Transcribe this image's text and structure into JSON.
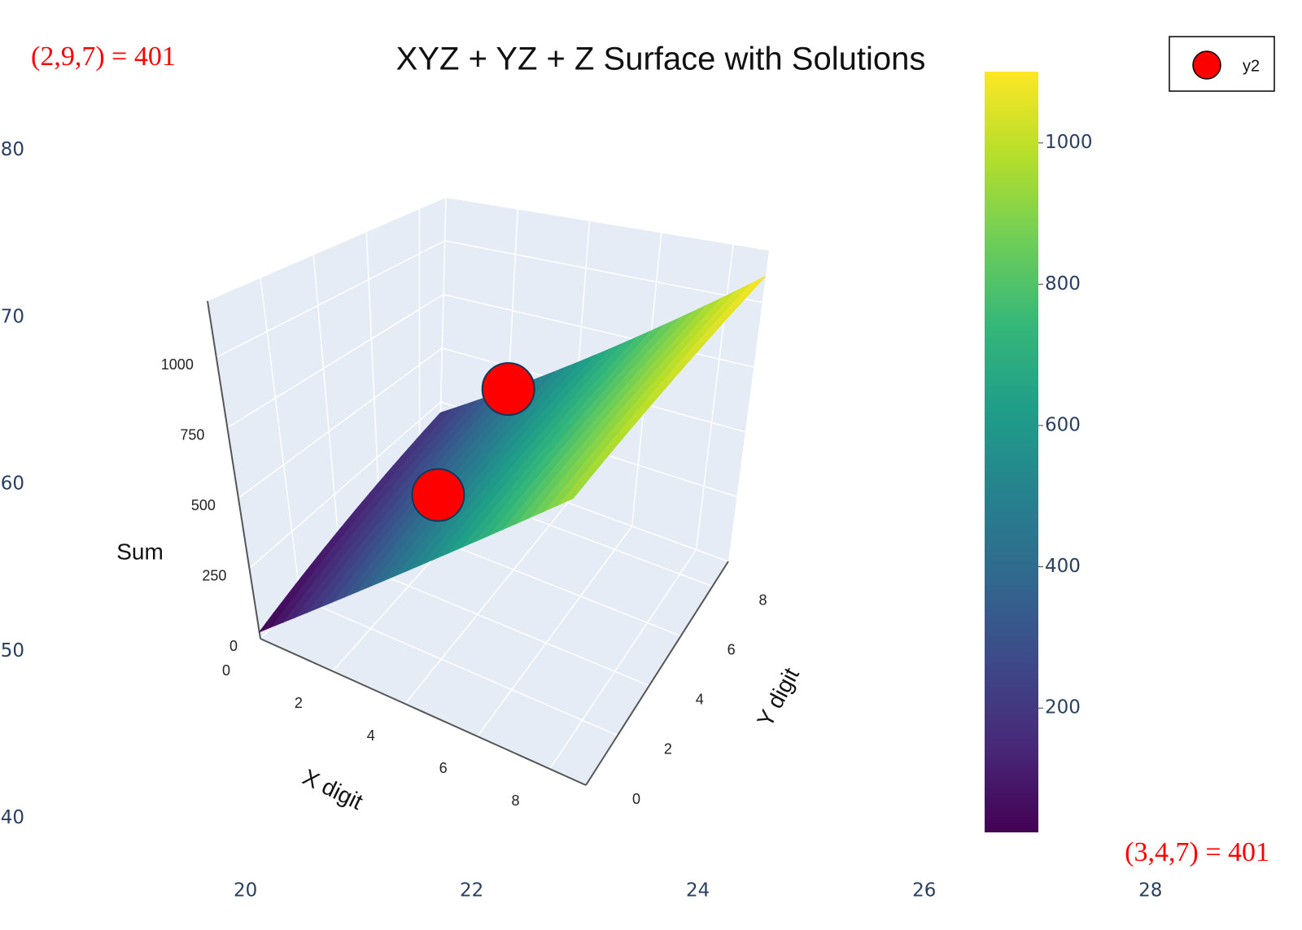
{
  "chart_data": [
    {
      "type": "surface3d",
      "title": "XYZ + YZ + Z Surface with Solutions",
      "x_label": "X digit",
      "y_label": "Y digit",
      "z_label": "Sum",
      "xlim": [
        0,
        9
      ],
      "ylim": [
        0,
        9
      ],
      "zlim": [
        0,
        1200
      ],
      "xticks": [
        0,
        2,
        4,
        6,
        8
      ],
      "yticks": [
        0,
        2,
        4,
        6,
        8
      ],
      "zticks": [
        0,
        250,
        500,
        750,
        1000
      ],
      "surface": {
        "x": [
          0,
          9
        ],
        "y": [
          0,
          9
        ],
        "z": [
          [
            24,
            200
          ],
          [
            950,
            1101
          ]
        ]
      },
      "colorscale": [
        "#440154",
        "#482878",
        "#3e4989",
        "#31688e",
        "#26828e",
        "#1f9e89",
        "#35b779",
        "#6ece58",
        "#b5de2b",
        "#fde725"
      ],
      "colorbar": {
        "lim": [
          24,
          1101
        ],
        "ticks": [
          200,
          400,
          600,
          800,
          1000
        ]
      },
      "series": [
        {
          "name": "y2",
          "color": "#ff0000",
          "x": [
            2,
            3
          ],
          "y": [
            9,
            4
          ],
          "z": [
            401,
            401
          ]
        }
      ],
      "legend": "top-right",
      "annotations": [
        {
          "text": "(2,9,7) = 401",
          "corner": "top-left"
        },
        {
          "text": "(3,4,7) = 401",
          "corner": "bottom-right"
        }
      ]
    },
    {
      "type": "axes",
      "xlim": [
        17.83,
        29.34
      ],
      "ylim": [
        33.3,
        89
      ],
      "xticks": [
        20,
        22,
        24,
        26,
        28
      ],
      "yticks": [
        40,
        50,
        60,
        70,
        80
      ]
    }
  ]
}
